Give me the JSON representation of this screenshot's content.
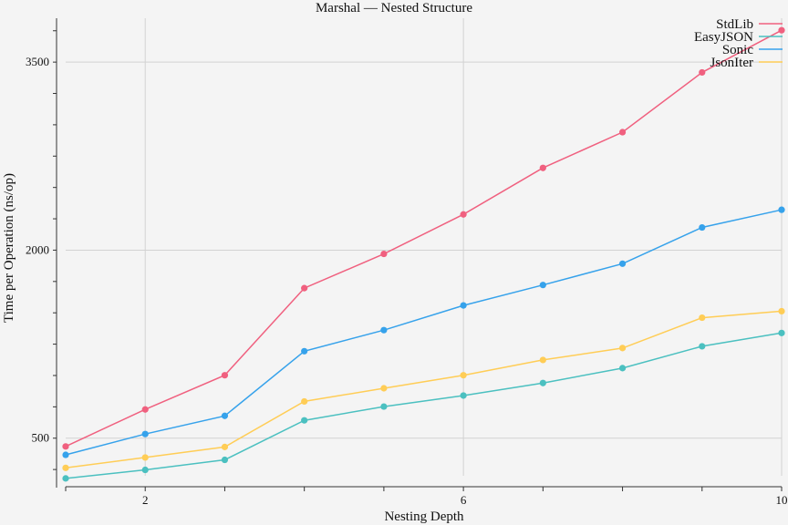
{
  "chart_data": {
    "type": "line",
    "title": "Marshal — Nested Structure",
    "xlabel": "Nesting Depth",
    "ylabel": "Time per Operation (ns/op)",
    "x": [
      1,
      2,
      3,
      4,
      5,
      6,
      7,
      8,
      9,
      10
    ],
    "xlim": [
      1,
      10
    ],
    "ylim": [
      200,
      3850
    ],
    "x_ticks": [
      2,
      6,
      10
    ],
    "y_ticks": [
      500,
      2000,
      3500
    ],
    "grid": true,
    "legend_position": "top-right",
    "series": [
      {
        "name": "StdLib",
        "color": "#f0607f",
        "values": [
          434,
          729,
          1002,
          1697,
          1970,
          2285,
          2656,
          2941,
          3418,
          3754
        ]
      },
      {
        "name": "EasyJSON",
        "color": "#4bc0c0",
        "values": [
          179,
          247,
          327,
          642,
          752,
          840,
          940,
          1059,
          1233,
          1339
        ]
      },
      {
        "name": "Sonic",
        "color": "#36a2eb",
        "values": [
          367,
          533,
          678,
          1194,
          1362,
          1559,
          1722,
          1892,
          2181,
          2322
        ]
      },
      {
        "name": "JsonIter",
        "color": "#ffcd56",
        "values": [
          263,
          346,
          430,
          793,
          898,
          1002,
          1124,
          1219,
          1461,
          1513
        ]
      }
    ]
  }
}
